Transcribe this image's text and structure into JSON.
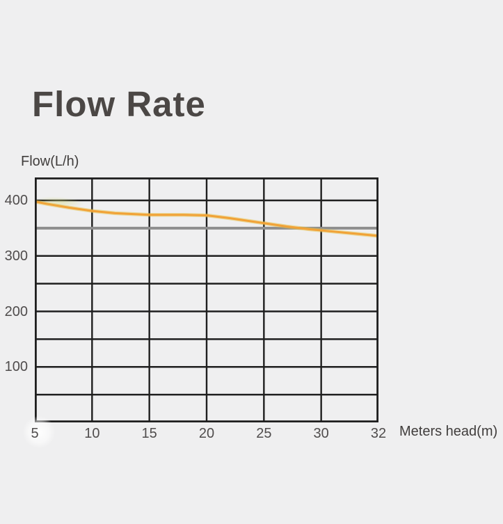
{
  "page": {
    "background": "#efeff0"
  },
  "title": "Flow Rate",
  "chart_data": {
    "type": "line",
    "title": "Flow Rate",
    "ylabel": "Flow(L/h)",
    "xlabel": "Meters head(m)",
    "x_tick_labels": [
      "5",
      "10",
      "15",
      "20",
      "25",
      "30",
      "32"
    ],
    "x_tick_values": [
      5,
      10,
      15,
      20,
      25,
      30,
      32
    ],
    "y_tick_labels": [
      "400",
      "300",
      "200",
      "100"
    ],
    "y_tick_values": [
      400,
      300,
      200,
      100
    ],
    "ylim": [
      0,
      441
    ],
    "grid": {
      "show": true,
      "y_step": 50,
      "y_line_min": 50,
      "y_line_max": 400
    },
    "legend_position": "none",
    "series": [
      {
        "name": "flow-vs-head",
        "color": "#F1A237",
        "glow_color": "#E6C34A",
        "points": [
          [
            5,
            398
          ],
          [
            6,
            394
          ],
          [
            8,
            387
          ],
          [
            10,
            381
          ],
          [
            12,
            377
          ],
          [
            15,
            374
          ],
          [
            18,
            374
          ],
          [
            20,
            373
          ],
          [
            22,
            368
          ],
          [
            25,
            359
          ],
          [
            27,
            353
          ],
          [
            29,
            348
          ],
          [
            30,
            346
          ],
          [
            32,
            336
          ]
        ]
      },
      {
        "name": "rated-flow-reference",
        "color": "#8E8E8E",
        "points": [
          [
            5,
            350
          ],
          [
            32,
            350
          ]
        ]
      }
    ]
  },
  "colors": {
    "background": "#efeff0",
    "grid": "#1f1f1f",
    "title_text": "#4b4745",
    "tick_text": "#4f4c4c",
    "axis_label_text": "#403d3c",
    "flow_line": "#F1A237",
    "reference_line": "#8E8E8E"
  }
}
